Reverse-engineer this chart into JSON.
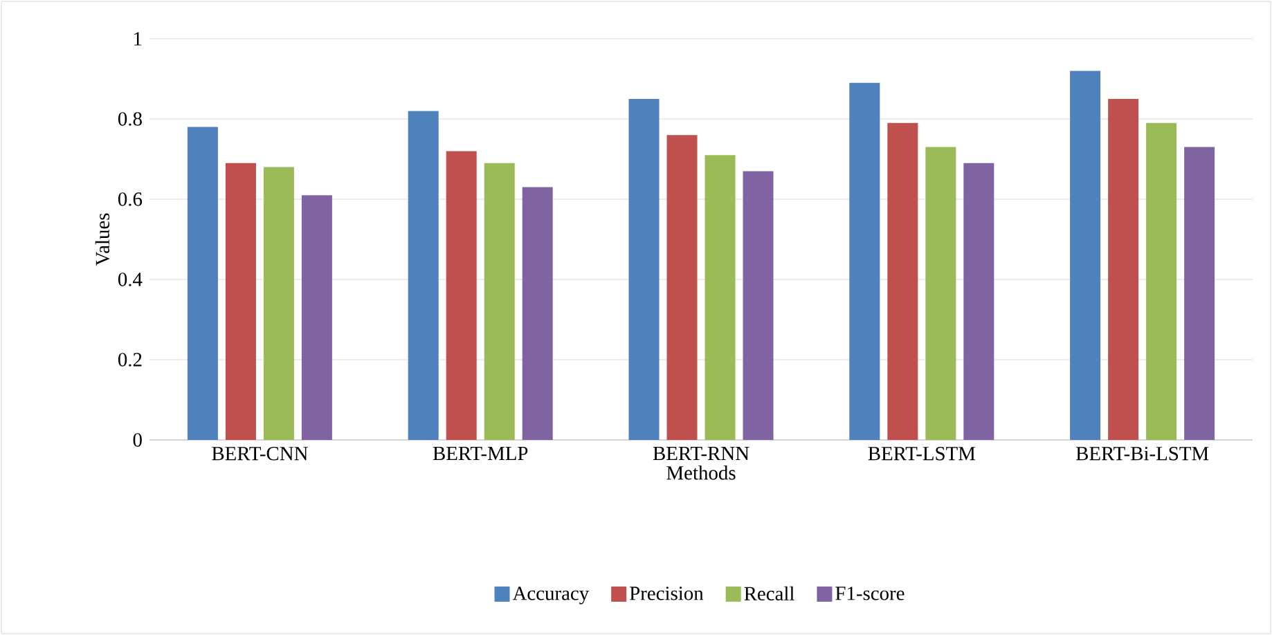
{
  "chart_data": {
    "type": "bar",
    "xlabel": "Methods",
    "ylabel": "Values",
    "categories": [
      "BERT-CNN",
      "BERT-MLP",
      "BERT-RNN",
      "BERT-LSTM",
      "BERT-Bi-LSTM"
    ],
    "series": [
      {
        "name": "Accuracy",
        "color": "#4f81bd",
        "values": [
          0.78,
          0.82,
          0.85,
          0.89,
          0.92
        ]
      },
      {
        "name": "Precision",
        "color": "#c0504d",
        "values": [
          0.69,
          0.72,
          0.76,
          0.79,
          0.85
        ]
      },
      {
        "name": "Recall",
        "color": "#9bbb59",
        "values": [
          0.68,
          0.69,
          0.71,
          0.73,
          0.79
        ]
      },
      {
        "name": "F1-score",
        "color": "#8064a2",
        "values": [
          0.61,
          0.63,
          0.67,
          0.69,
          0.73
        ]
      }
    ],
    "ylim": [
      0,
      1
    ],
    "yticks": [
      0,
      0.2,
      0.4,
      0.6,
      0.8,
      1
    ],
    "grid": "y",
    "legend": "bottom"
  }
}
